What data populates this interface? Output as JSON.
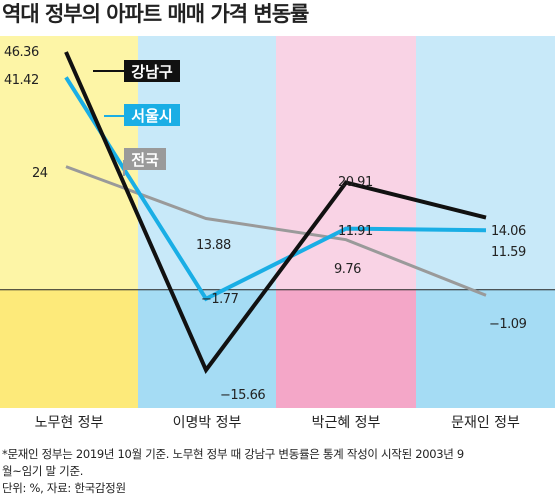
{
  "chart_data": {
    "type": "line",
    "title": "역대 정부의 아파트 매매 가격 변동률",
    "categories": [
      "노무현 정부",
      "이명박 정부",
      "박근혜 정부",
      "문재인 정부"
    ],
    "series": [
      {
        "name": "강남구",
        "values": [
          46.36,
          -15.66,
          20.91,
          14.06
        ],
        "labels": [
          "46.36",
          "−15.66",
          "20.91",
          "14.06"
        ],
        "color": "#111111"
      },
      {
        "name": "서울시",
        "values": [
          41.42,
          -1.77,
          11.91,
          11.59
        ],
        "labels": [
          "41.42",
          "−1.77",
          "11.91",
          "11.59"
        ],
        "color": "#1aaee5"
      },
      {
        "name": "전국",
        "values": [
          24,
          13.88,
          9.76,
          -1.09
        ],
        "labels": [
          "24",
          "13.88",
          "9.76",
          "−1.09"
        ],
        "color": "#9a9a9a"
      }
    ],
    "ylim": [
      -18,
      50
    ],
    "band_colors": [
      "#fdf5a6",
      "#c8e9f9",
      "#f9d3e5",
      "#c8e9f9"
    ],
    "band_colors_below_zero": [
      "#fdea7a",
      "#a5dcf4",
      "#f4a7c8",
      "#a5dcf4"
    ]
  },
  "footnote": {
    "line1": "*문재인 정부는 2019년 10월 기준. 노무현 정부 때 강남구 변동률은 통계 작성이 시작된 2003년 9",
    "line2": "월~임기 말 기준.",
    "line3": "단위: %, 자료: 한국감정원"
  }
}
